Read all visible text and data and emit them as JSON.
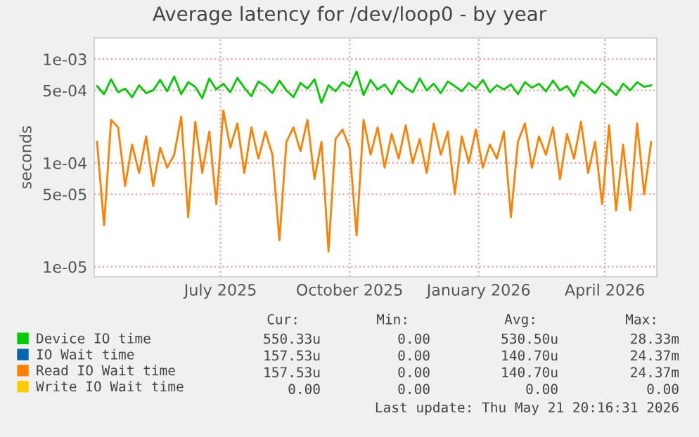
{
  "chart_data": {
    "type": "line",
    "title": "Average latency for /dev/loop0 - by year",
    "ylabel": "seconds",
    "x": [
      "2025-04-04",
      "2025-04-09",
      "2025-04-14",
      "2025-04-19",
      "2025-04-24",
      "2025-04-29",
      "2025-05-04",
      "2025-05-09",
      "2025-05-14",
      "2025-05-19",
      "2025-05-24",
      "2025-05-29",
      "2025-06-03",
      "2025-06-08",
      "2025-06-13",
      "2025-06-18",
      "2025-06-23",
      "2025-06-28",
      "2025-07-03",
      "2025-07-08",
      "2025-07-13",
      "2025-07-18",
      "2025-07-23",
      "2025-07-28",
      "2025-08-02",
      "2025-08-07",
      "2025-08-12",
      "2025-08-17",
      "2025-08-22",
      "2025-08-27",
      "2025-09-01",
      "2025-09-06",
      "2025-09-11",
      "2025-09-16",
      "2025-09-21",
      "2025-09-26",
      "2025-10-01",
      "2025-10-06",
      "2025-10-11",
      "2025-10-16",
      "2025-10-21",
      "2025-10-26",
      "2025-10-31",
      "2025-11-05",
      "2025-11-10",
      "2025-11-15",
      "2025-11-20",
      "2025-11-25",
      "2025-11-30",
      "2025-12-05",
      "2025-12-10",
      "2025-12-15",
      "2025-12-20",
      "2025-12-25",
      "2025-12-30",
      "2026-01-04",
      "2026-01-09",
      "2026-01-14",
      "2026-01-19",
      "2026-01-24",
      "2026-01-29",
      "2026-02-03",
      "2026-02-08",
      "2026-02-13",
      "2026-02-18",
      "2026-02-23",
      "2026-02-28",
      "2026-03-05",
      "2026-03-10",
      "2026-03-15",
      "2026-03-20",
      "2026-03-25",
      "2026-03-30",
      "2026-04-04",
      "2026-04-09",
      "2026-04-14",
      "2026-04-19",
      "2026-04-24",
      "2026-04-29",
      "2026-05-04"
    ],
    "series": [
      {
        "name": "Device IO time",
        "color": "#00cc00",
        "values": [
          0.00055,
          0.00046,
          0.00064,
          0.00048,
          0.00052,
          0.00043,
          0.00056,
          0.00047,
          0.0005,
          0.00063,
          0.00049,
          0.00068,
          0.00046,
          0.0006,
          0.00054,
          0.00042,
          0.00065,
          0.00051,
          0.00058,
          0.00048,
          0.00066,
          0.00053,
          0.00044,
          0.00061,
          0.00055,
          0.00047,
          0.00062,
          0.0005,
          0.00043,
          0.00059,
          0.00052,
          0.00064,
          0.00038,
          0.00056,
          0.00049,
          0.0006,
          0.00054,
          0.00076,
          0.00045,
          0.00063,
          0.00051,
          0.00057,
          0.00046,
          0.00062,
          0.00053,
          0.00048,
          0.00065,
          0.0005,
          0.00058,
          0.00047,
          0.00061,
          0.00055,
          0.00049,
          0.00059,
          0.00052,
          0.00063,
          0.00048,
          0.00056,
          0.00051,
          0.00057,
          0.00046,
          0.0006,
          0.00053,
          0.00058,
          0.00049,
          0.00062,
          0.0005,
          0.00055,
          0.00044,
          0.00061,
          0.00054,
          0.00047,
          0.00059,
          0.00052,
          0.00045,
          0.00058,
          0.0005,
          0.0006,
          0.00054,
          0.00056
        ]
      },
      {
        "name": "IO Wait time",
        "color": "#0066b3",
        "values": [
          null,
          null,
          null,
          null,
          null,
          null,
          null,
          null,
          null,
          null,
          null,
          null,
          null,
          null,
          null,
          null,
          null,
          null,
          null,
          null,
          null,
          null,
          null,
          null,
          null,
          null,
          null,
          null,
          null,
          null,
          null,
          null,
          null,
          null,
          null,
          null,
          null,
          null,
          null,
          null,
          null,
          null,
          null,
          null,
          null,
          null,
          null,
          null,
          null,
          null,
          null,
          null,
          null,
          null,
          null,
          null,
          null,
          null,
          null,
          null,
          null,
          null,
          null,
          null,
          null,
          null,
          null,
          null,
          null,
          null,
          null,
          null,
          null,
          null,
          null,
          null,
          null,
          null,
          null,
          null
        ]
      },
      {
        "name": "Read IO Wait time",
        "color": "#ff8000",
        "values": [
          0.00016,
          2.5e-05,
          0.00026,
          0.00022,
          6e-05,
          0.00015,
          8e-05,
          0.00018,
          6e-05,
          0.00014,
          9e-05,
          0.00012,
          0.00028,
          3e-05,
          0.00025,
          8e-05,
          0.0002,
          4e-05,
          0.00032,
          0.00014,
          0.00024,
          8e-05,
          0.00022,
          0.00011,
          0.0002,
          0.00012,
          1.8e-05,
          0.00016,
          0.00022,
          0.00013,
          0.00026,
          7e-05,
          0.00016,
          1.4e-05,
          0.00017,
          0.00021,
          0.00014,
          2e-05,
          0.00026,
          0.00012,
          0.00022,
          9e-05,
          0.00019,
          0.00011,
          0.00023,
          0.0001,
          0.00017,
          8e-05,
          0.00024,
          0.00012,
          0.0002,
          5e-05,
          0.00018,
          0.0001,
          0.00021,
          9e-05,
          0.00015,
          0.00011,
          0.0002,
          3e-05,
          0.00016,
          0.00024,
          9e-05,
          0.00018,
          0.00012,
          0.00022,
          7e-05,
          0.00019,
          0.00011,
          0.00025,
          8e-05,
          0.00016,
          4e-05,
          0.00023,
          3.5e-05,
          0.00015,
          3.5e-05,
          0.00024,
          5e-05,
          0.00016
        ]
      },
      {
        "name": "Write IO Wait time",
        "color": "#ffcc00",
        "values": [
          null,
          null,
          null,
          null,
          null,
          null,
          null,
          null,
          null,
          null,
          null,
          null,
          null,
          null,
          null,
          null,
          null,
          null,
          null,
          null,
          null,
          null,
          null,
          null,
          null,
          null,
          null,
          null,
          null,
          null,
          null,
          null,
          null,
          null,
          null,
          null,
          null,
          null,
          null,
          null,
          null,
          null,
          null,
          null,
          null,
          null,
          null,
          null,
          null,
          null,
          null,
          null,
          null,
          null,
          null,
          null,
          null,
          null,
          null,
          null,
          null,
          null,
          null,
          null,
          null,
          null,
          null,
          null,
          null,
          null,
          null,
          null,
          null,
          null,
          null,
          null,
          null,
          null,
          null,
          null
        ]
      }
    ],
    "log": "y",
    "ylim": [
      8e-06,
      0.0016
    ],
    "yticks": [
      {
        "value": 1e-05,
        "label": "1e-05"
      },
      {
        "value": 5e-05,
        "label": "5e-05"
      },
      {
        "value": 0.0001,
        "label": "1e-04"
      },
      {
        "value": 0.0005,
        "label": "5e-04"
      },
      {
        "value": 0.001,
        "label": "1e-03"
      }
    ],
    "xlim": [
      "2025-04-02",
      "2026-05-08"
    ],
    "xticks": [
      {
        "value": "2025-07-01",
        "label": "July 2025"
      },
      {
        "value": "2025-10-01",
        "label": "October 2025"
      },
      {
        "value": "2026-01-01",
        "label": "January 2026"
      },
      {
        "value": "2026-04-01",
        "label": "April 2026"
      }
    ],
    "grid": true,
    "legend": "bottom left",
    "annotations": [
      "Cur:",
      "Min:",
      "Avg:",
      "Max:",
      "550.33u",
      "0.00",
      "530.50u",
      "28.33m",
      "157.53u",
      "0.00",
      "140.70u",
      "24.37m",
      "157.53u",
      "0.00",
      "140.70u",
      "24.37m",
      "0.00",
      "0.00",
      "0.00",
      "0.00",
      "Last update: Thu May 21 20:16:31 2026"
    ]
  }
}
